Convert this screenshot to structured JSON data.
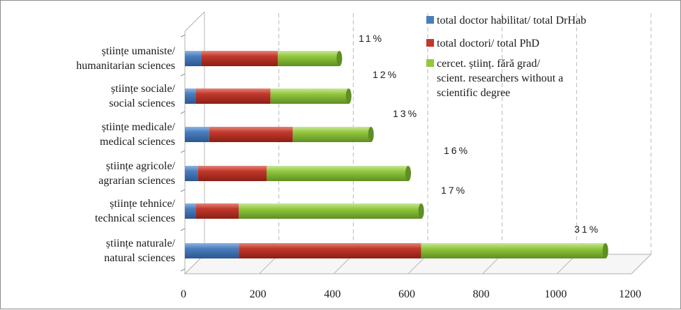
{
  "chart_data": {
    "type": "bar",
    "orientation": "horizontal",
    "stacked": true,
    "categories": [
      [
        "științe naturale/",
        "natural sciences"
      ],
      [
        "științe tehnice/",
        "technical sciences"
      ],
      [
        "științe agricole/",
        "agrarian sciences"
      ],
      [
        "științe medicale/",
        "medical sciences"
      ],
      [
        "științe sociale/",
        "social sciences"
      ],
      [
        "științe umaniste/",
        "humanitarian sciences"
      ]
    ],
    "series": [
      {
        "name": "total doctor habilitat/ total DrHab",
        "color": "#4a7ebb",
        "values": [
          145,
          30,
          35,
          65,
          30,
          45
        ]
      },
      {
        "name": "total doctori/ total PhD",
        "color": "#c0392b",
        "values": [
          490,
          115,
          185,
          225,
          200,
          205
        ]
      },
      {
        "name": [
          "cercet. științ. fără grad/",
          "scient. researchers without a",
          "scientific degree"
        ],
        "color": "#92c83e",
        "values": [
          495,
          490,
          380,
          210,
          210,
          165
        ]
      }
    ],
    "data_labels": [
      "31%",
      "17%",
      "16%",
      "13%",
      "12%",
      "11%"
    ],
    "x_ticks": [
      0,
      200,
      400,
      600,
      800,
      1000,
      1200
    ],
    "xlim": [
      0,
      1200
    ],
    "grid": true,
    "legend_position": "top-right",
    "style": "3d-cylinder"
  }
}
